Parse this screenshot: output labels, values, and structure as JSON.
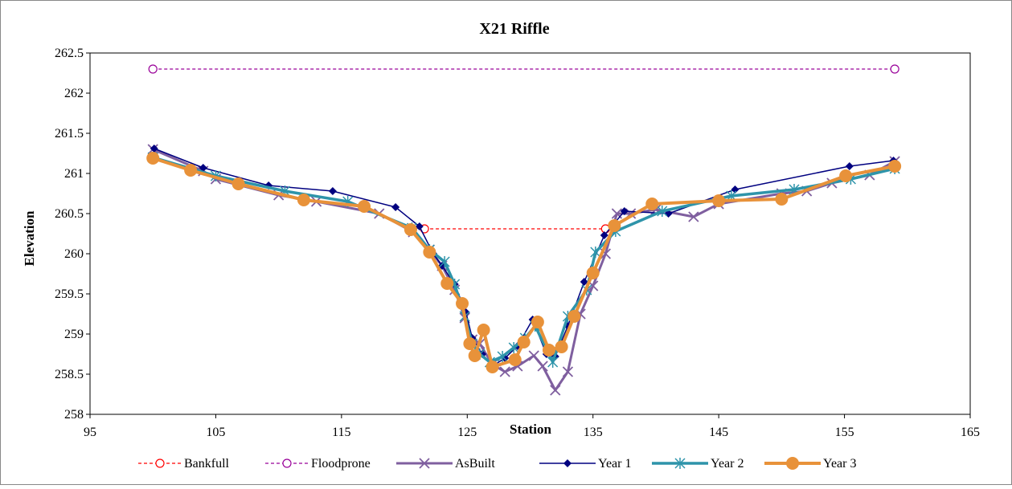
{
  "chart_data": {
    "type": "line",
    "title": "X21 Riffle",
    "xlabel": "Station",
    "ylabel": "Elevation",
    "xlim": [
      95,
      165
    ],
    "ylim": [
      258,
      262.5
    ],
    "xticks": [
      "95",
      "105",
      "115",
      "125",
      "135",
      "145",
      "155",
      "165"
    ],
    "yticks": [
      "258",
      "258.5",
      "259",
      "259.5",
      "260",
      "260.5",
      "261",
      "261.5",
      "262",
      "262.5"
    ],
    "grid": false,
    "legend_position": "bottom",
    "series": [
      {
        "name": "Bankfull",
        "color": "#ff0000",
        "marker": "circle-open",
        "dashed": true,
        "points": [
          [
            121.6,
            260.31
          ],
          [
            136.0,
            260.31
          ]
        ]
      },
      {
        "name": "Floodprone",
        "color": "#990099",
        "marker": "circle-open",
        "dashed": true,
        "points": [
          [
            100,
            262.3
          ],
          [
            159,
            262.3
          ]
        ]
      },
      {
        "name": "AsBuilt",
        "color": "#7f5f9f",
        "marker": "x",
        "width": 3,
        "points": [
          [
            100,
            261.3
          ],
          [
            104,
            261.03
          ],
          [
            105,
            260.93
          ],
          [
            110,
            260.73
          ],
          [
            113,
            260.65
          ],
          [
            118,
            260.5
          ],
          [
            120.7,
            260.27
          ],
          [
            122,
            260.05
          ],
          [
            123,
            259.85
          ],
          [
            124,
            259.55
          ],
          [
            124.8,
            259.2
          ],
          [
            125.4,
            258.93
          ],
          [
            126,
            258.88
          ],
          [
            127,
            258.62
          ],
          [
            128,
            258.53
          ],
          [
            129,
            258.6
          ],
          [
            130.3,
            258.73
          ],
          [
            131,
            258.6
          ],
          [
            132,
            258.3
          ],
          [
            133,
            258.53
          ],
          [
            134,
            259.25
          ],
          [
            135,
            259.6
          ],
          [
            136,
            260.0
          ],
          [
            136.9,
            260.5
          ],
          [
            138,
            260.5
          ],
          [
            140,
            260.55
          ],
          [
            143,
            260.46
          ],
          [
            145,
            260.62
          ],
          [
            150,
            260.75
          ],
          [
            152,
            260.78
          ],
          [
            154,
            260.88
          ],
          [
            157,
            260.98
          ],
          [
            159,
            261.15
          ]
        ]
      },
      {
        "name": "Year 1",
        "color": "#000080",
        "marker": "diamond",
        "width": 1.5,
        "points": [
          [
            100.1,
            261.31
          ],
          [
            104,
            261.07
          ],
          [
            109.2,
            260.85
          ],
          [
            114.3,
            260.78
          ],
          [
            119.3,
            260.58
          ],
          [
            121.2,
            260.34
          ],
          [
            122.3,
            260.0
          ],
          [
            123,
            259.85
          ],
          [
            124,
            259.62
          ],
          [
            124.9,
            259.27
          ],
          [
            125.4,
            258.95
          ],
          [
            126.2,
            258.75
          ],
          [
            127,
            258.6
          ],
          [
            128,
            258.7
          ],
          [
            129,
            258.85
          ],
          [
            130.2,
            259.18
          ],
          [
            131.3,
            258.75
          ],
          [
            132,
            258.72
          ],
          [
            133,
            259.1
          ],
          [
            134.3,
            259.65
          ],
          [
            135.9,
            260.23
          ],
          [
            137.5,
            260.53
          ],
          [
            141,
            260.5
          ],
          [
            146.3,
            260.8
          ],
          [
            155.4,
            261.09
          ],
          [
            158.9,
            261.16
          ]
        ]
      },
      {
        "name": "Year 2",
        "color": "#2e94aa",
        "marker": "asterisk",
        "width": 3.5,
        "points": [
          [
            100,
            261.2
          ],
          [
            105,
            260.97
          ],
          [
            110.5,
            260.78
          ],
          [
            115.5,
            260.65
          ],
          [
            120.6,
            260.32
          ],
          [
            122,
            260.05
          ],
          [
            123.2,
            259.9
          ],
          [
            124,
            259.62
          ],
          [
            124.8,
            259.22
          ],
          [
            125.4,
            258.88
          ],
          [
            126,
            258.75
          ],
          [
            126.8,
            258.65
          ],
          [
            127.8,
            258.72
          ],
          [
            128.7,
            258.83
          ],
          [
            129.6,
            258.95
          ],
          [
            130.4,
            259.1
          ],
          [
            131.8,
            258.65
          ],
          [
            133,
            259.22
          ],
          [
            134.5,
            259.55
          ],
          [
            135.2,
            260.02
          ],
          [
            136.8,
            260.28
          ],
          [
            140.5,
            260.53
          ],
          [
            146,
            260.72
          ],
          [
            151,
            260.8
          ],
          [
            155.5,
            260.93
          ],
          [
            159,
            261.06
          ]
        ]
      },
      {
        "name": "Year 3",
        "color": "#e8923a",
        "marker": "circle",
        "width": 4,
        "points": [
          [
            100,
            261.19
          ],
          [
            103,
            261.04
          ],
          [
            106.8,
            260.87
          ],
          [
            112,
            260.67
          ],
          [
            116.8,
            260.59
          ],
          [
            120.5,
            260.3
          ],
          [
            122,
            260.02
          ],
          [
            123.4,
            259.63
          ],
          [
            124.6,
            259.38
          ],
          [
            125.2,
            258.88
          ],
          [
            125.6,
            258.73
          ],
          [
            126.3,
            259.05
          ],
          [
            127,
            258.59
          ],
          [
            128.8,
            258.68
          ],
          [
            129.5,
            258.9
          ],
          [
            130.6,
            259.15
          ],
          [
            131.5,
            258.8
          ],
          [
            132.5,
            258.84
          ],
          [
            133.5,
            259.22
          ],
          [
            135,
            259.76
          ],
          [
            136.7,
            260.35
          ],
          [
            139.7,
            260.62
          ],
          [
            145,
            260.66
          ],
          [
            150,
            260.68
          ],
          [
            155.1,
            260.97
          ],
          [
            159,
            261.09
          ]
        ]
      }
    ]
  }
}
